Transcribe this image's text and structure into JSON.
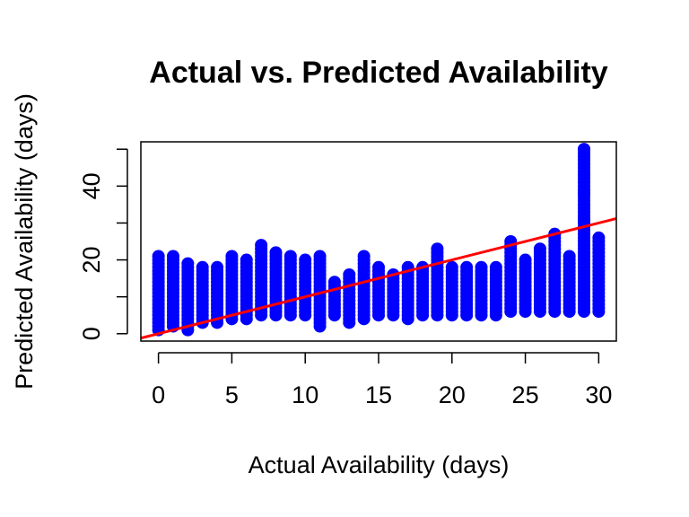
{
  "chart_data": {
    "type": "scatter",
    "title": "Actual vs. Predicted Availability",
    "xlabel": "Actual Availability (days)",
    "ylabel": "Predicted Availability (days)",
    "xlim": [
      -1.2,
      31.2
    ],
    "ylim": [
      -2,
      52
    ],
    "x_ticks": [
      0,
      5,
      10,
      15,
      20,
      25,
      30
    ],
    "y_ticks": [
      0,
      20,
      40
    ],
    "y_minor_ticks": [
      10,
      30,
      50
    ],
    "grid": false,
    "legend": "none",
    "colors": {
      "points": "#0000ff",
      "line": "#ff0000"
    },
    "points": [
      {
        "x": 0,
        "y": [
          1,
          21
        ]
      },
      {
        "x": 1,
        "y": [
          2,
          21
        ]
      },
      {
        "x": 2,
        "y": [
          1,
          19
        ]
      },
      {
        "x": 3,
        "y": [
          3,
          18
        ]
      },
      {
        "x": 4,
        "y": [
          3,
          18
        ]
      },
      {
        "x": 5,
        "y": [
          4,
          21
        ]
      },
      {
        "x": 6,
        "y": [
          4,
          20
        ]
      },
      {
        "x": 7,
        "y": [
          5,
          24
        ]
      },
      {
        "x": 8,
        "y": [
          5,
          22
        ]
      },
      {
        "x": 9,
        "y": [
          5,
          21
        ]
      },
      {
        "x": 10,
        "y": [
          5,
          20
        ]
      },
      {
        "x": 11,
        "y": [
          2,
          21
        ]
      },
      {
        "x": 12,
        "y": [
          5,
          14
        ]
      },
      {
        "x": 13,
        "y": [
          3,
          16
        ]
      },
      {
        "x": 14,
        "y": [
          4,
          21
        ]
      },
      {
        "x": 15,
        "y": [
          5,
          18
        ]
      },
      {
        "x": 16,
        "y": [
          5,
          16
        ]
      },
      {
        "x": 17,
        "y": [
          4,
          18
        ]
      },
      {
        "x": 18,
        "y": [
          5,
          18
        ]
      },
      {
        "x": 19,
        "y": [
          5,
          23
        ]
      },
      {
        "x": 20,
        "y": [
          5,
          18
        ]
      },
      {
        "x": 21,
        "y": [
          5,
          18
        ]
      },
      {
        "x": 22,
        "y": [
          5,
          18
        ]
      },
      {
        "x": 23,
        "y": [
          5,
          18
        ]
      },
      {
        "x": 24,
        "y": [
          6,
          25
        ]
      },
      {
        "x": 25,
        "y": [
          6,
          20
        ]
      },
      {
        "x": 26,
        "y": [
          6,
          23
        ]
      },
      {
        "x": 27,
        "y": [
          6,
          27
        ]
      },
      {
        "x": 28,
        "y": [
          6,
          21
        ]
      },
      {
        "x": 29,
        "y": [
          6,
          50
        ]
      },
      {
        "x": 30,
        "y": [
          6,
          26
        ]
      }
    ],
    "outliers": [
      {
        "x": 29,
        "y": 50
      },
      {
        "x": 29,
        "y": 38
      },
      {
        "x": 29,
        "y": 31
      },
      {
        "x": 27,
        "y": 27
      }
    ],
    "fit_line": {
      "intercept": 0,
      "slope": 1
    }
  }
}
